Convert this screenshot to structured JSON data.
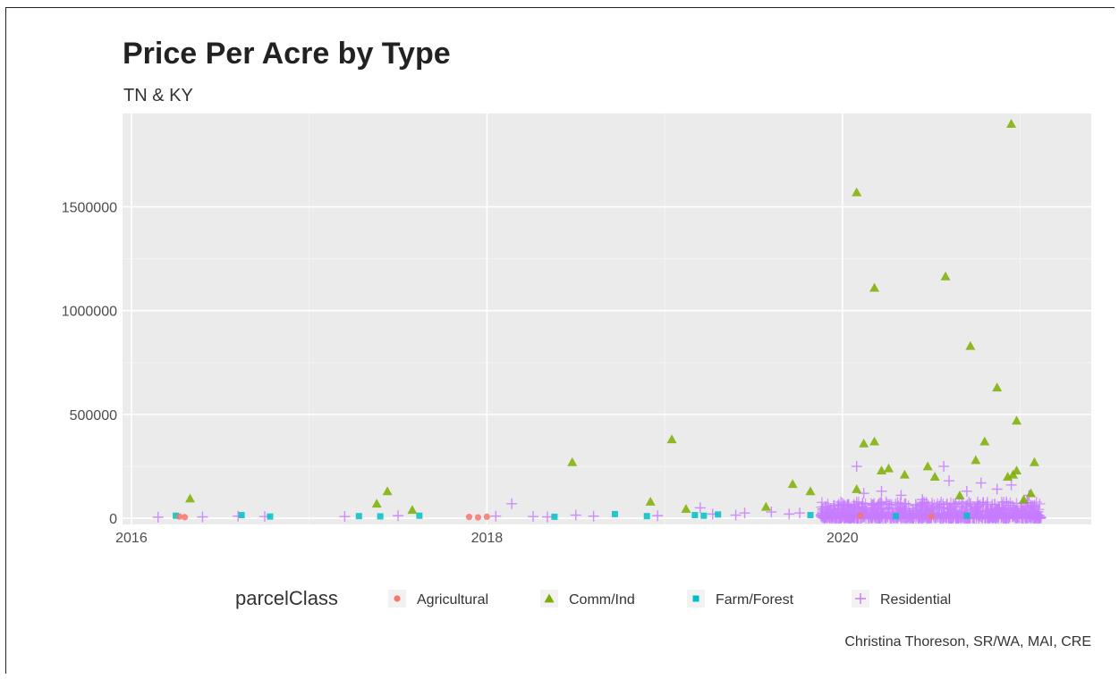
{
  "chart_data": {
    "type": "scatter",
    "title": "Price Per Acre by Type",
    "subtitle": "TN & KY",
    "caption": "Christina Thoreson, SR/WA, MAI, CRE",
    "xlabel": "",
    "ylabel": "",
    "xlim": [
      2015.95,
      2021.4
    ],
    "ylim": [
      -30000,
      1950000
    ],
    "x_ticks": [
      2016,
      2018,
      2020
    ],
    "x_tick_labels": [
      "2016",
      "2018",
      "2020"
    ],
    "y_ticks": [
      0,
      500000,
      1000000,
      1500000
    ],
    "y_tick_labels": [
      "0",
      "500000",
      "1000000",
      "1500000"
    ],
    "grid": true,
    "legend": {
      "title": "parcelClass",
      "position": "bottom"
    },
    "series": [
      {
        "name": "Agricultural",
        "shape": "circle",
        "color": "#F8766D",
        "points": [
          [
            2016.27,
            8000
          ],
          [
            2016.3,
            5000
          ],
          [
            2017.9,
            6000
          ],
          [
            2017.95,
            4000
          ],
          [
            2018.0,
            7000
          ],
          [
            2020.1,
            12000
          ],
          [
            2020.5,
            9000
          ]
        ]
      },
      {
        "name": "Comm/Ind",
        "shape": "triangle",
        "color": "#7CAE00",
        "points": [
          [
            2016.33,
            95000
          ],
          [
            2017.38,
            70000
          ],
          [
            2017.44,
            130000
          ],
          [
            2017.58,
            40000
          ],
          [
            2018.48,
            270000
          ],
          [
            2018.92,
            80000
          ],
          [
            2019.04,
            380000
          ],
          [
            2019.12,
            45000
          ],
          [
            2019.57,
            55000
          ],
          [
            2019.72,
            165000
          ],
          [
            2019.82,
            130000
          ],
          [
            2020.08,
            1570000
          ],
          [
            2020.12,
            360000
          ],
          [
            2020.08,
            140000
          ],
          [
            2020.18,
            370000
          ],
          [
            2020.18,
            1110000
          ],
          [
            2020.22,
            230000
          ],
          [
            2020.26,
            240000
          ],
          [
            2020.35,
            210000
          ],
          [
            2020.48,
            250000
          ],
          [
            2020.52,
            200000
          ],
          [
            2020.58,
            1165000
          ],
          [
            2020.66,
            110000
          ],
          [
            2020.72,
            830000
          ],
          [
            2020.75,
            280000
          ],
          [
            2020.8,
            370000
          ],
          [
            2020.87,
            630000
          ],
          [
            2020.93,
            200000
          ],
          [
            2020.96,
            210000
          ],
          [
            2020.98,
            230000
          ],
          [
            2020.95,
            1900000
          ],
          [
            2020.98,
            470000
          ],
          [
            2021.08,
            270000
          ],
          [
            2021.02,
            90000
          ],
          [
            2021.06,
            120000
          ]
        ]
      },
      {
        "name": "Farm/Forest",
        "shape": "square",
        "color": "#00BFC4",
        "points": [
          [
            2016.25,
            12000
          ],
          [
            2016.62,
            15000
          ],
          [
            2016.78,
            8000
          ],
          [
            2017.28,
            10000
          ],
          [
            2017.4,
            9000
          ],
          [
            2017.62,
            12000
          ],
          [
            2018.38,
            7000
          ],
          [
            2018.72,
            20000
          ],
          [
            2018.9,
            10000
          ],
          [
            2019.17,
            15000
          ],
          [
            2019.22,
            12000
          ],
          [
            2019.3,
            18000
          ],
          [
            2019.82,
            15000
          ],
          [
            2020.3,
            10000
          ],
          [
            2020.7,
            12000
          ]
        ]
      },
      {
        "name": "Residential",
        "shape": "plus",
        "color": "#C77CFF",
        "points": [
          [
            2016.15,
            5000
          ],
          [
            2016.4,
            6000
          ],
          [
            2016.6,
            10000
          ],
          [
            2016.75,
            8000
          ],
          [
            2017.2,
            8000
          ],
          [
            2017.5,
            12000
          ],
          [
            2018.05,
            10000
          ],
          [
            2018.14,
            70000
          ],
          [
            2018.26,
            8000
          ],
          [
            2018.34,
            6000
          ],
          [
            2018.5,
            15000
          ],
          [
            2018.6,
            10000
          ],
          [
            2018.96,
            12000
          ],
          [
            2019.2,
            50000
          ],
          [
            2019.27,
            20000
          ],
          [
            2019.4,
            15000
          ],
          [
            2019.45,
            25000
          ],
          [
            2019.6,
            30000
          ],
          [
            2019.7,
            20000
          ],
          [
            2019.76,
            25000
          ],
          [
            2019.88,
            15000
          ],
          [
            2020.08,
            250000
          ],
          [
            2020.12,
            120000
          ],
          [
            2020.22,
            130000
          ],
          [
            2020.33,
            110000
          ],
          [
            2020.45,
            90000
          ],
          [
            2020.57,
            250000
          ],
          [
            2020.6,
            180000
          ],
          [
            2020.7,
            130000
          ],
          [
            2020.78,
            170000
          ],
          [
            2020.87,
            140000
          ],
          [
            2020.95,
            160000
          ],
          [
            2021.05,
            110000
          ]
        ],
        "dense_band": {
          "x_range": [
            2019.88,
            2021.12
          ],
          "y_range": [
            0,
            80000
          ],
          "note": "many overlapping Residential points"
        }
      }
    ]
  }
}
